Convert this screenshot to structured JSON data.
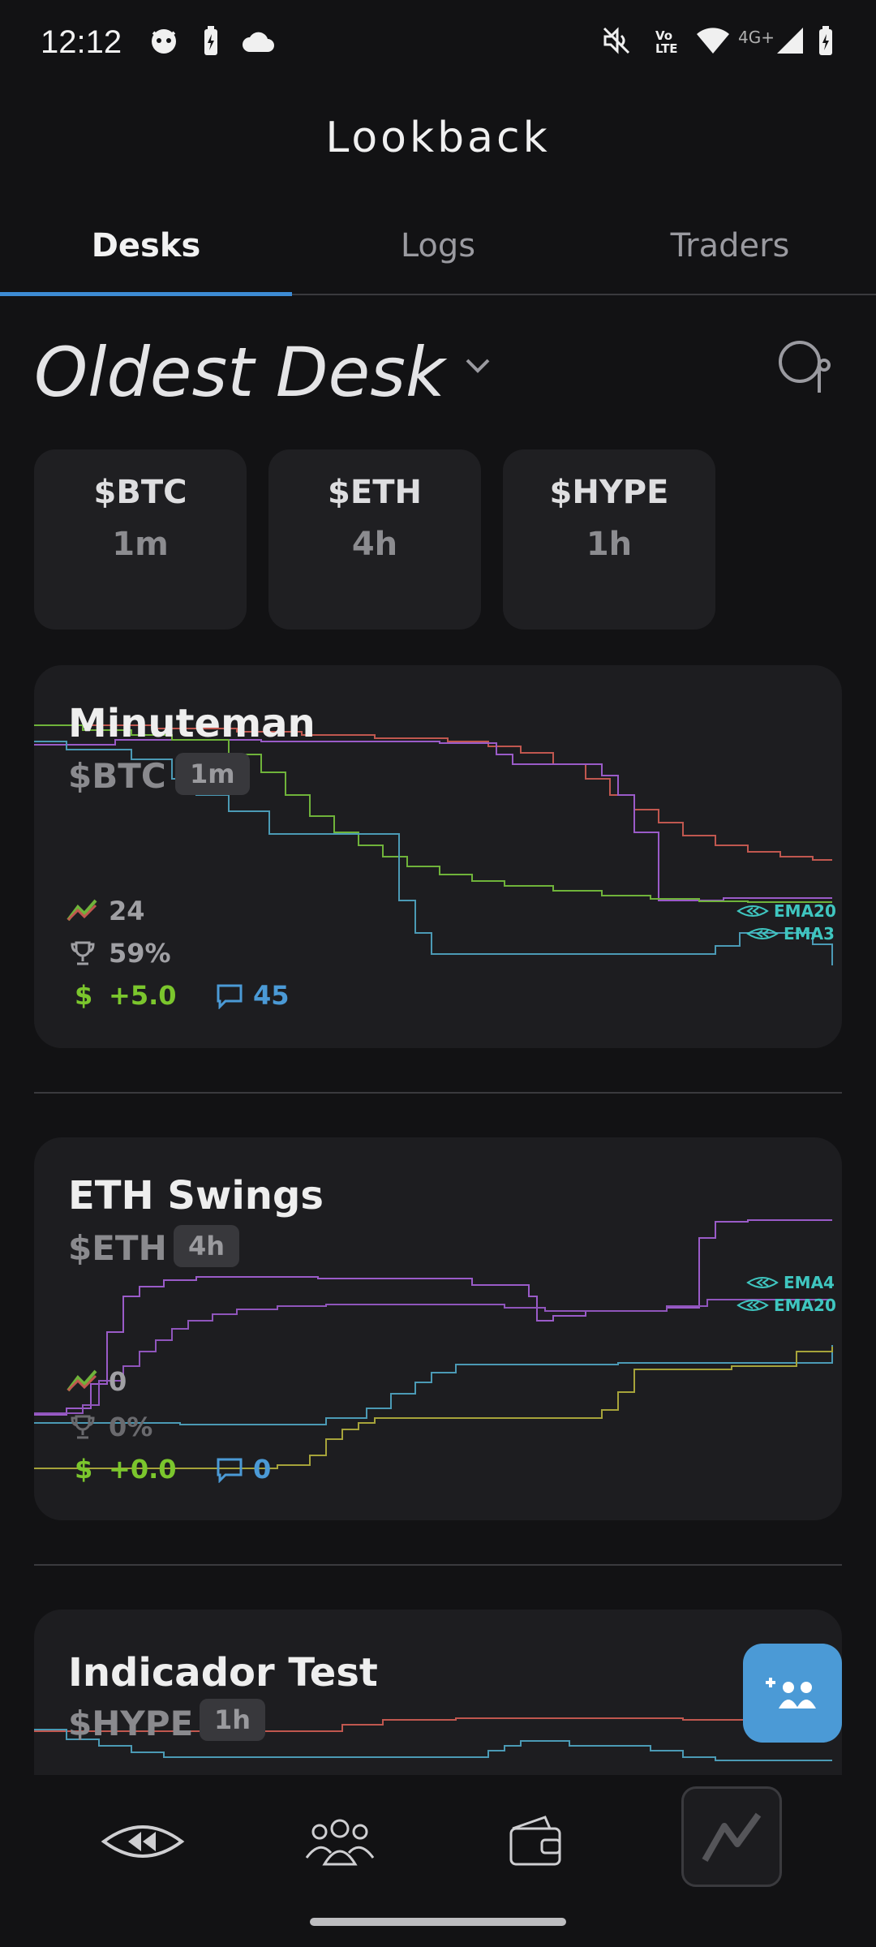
{
  "status_bar": {
    "time": "12:12",
    "left_icons": [
      "cat-face-icon",
      "battery-saver-icon",
      "cloud-icon"
    ],
    "right_icons": [
      "mute-icon",
      "volte-icon",
      "wifi-icon",
      "signal-icon",
      "battery-icon"
    ],
    "network_label": "4G+",
    "volte_label": "Vo LTE"
  },
  "app_bar": {
    "title": "Lookback"
  },
  "tabs": [
    {
      "label": "Desks",
      "active": true
    },
    {
      "label": "Logs",
      "active": false
    },
    {
      "label": "Traders",
      "active": false
    }
  ],
  "desk": {
    "title": "Oldest Desk",
    "dropdown_icon": "chevron-down-icon",
    "search_icon": "search-icon"
  },
  "tickers": [
    {
      "symbol": "$BTC",
      "timeframe": "1m"
    },
    {
      "symbol": "$ETH",
      "timeframe": "4h"
    },
    {
      "symbol": "$HYPE",
      "timeframe": "1h"
    }
  ],
  "cards": [
    {
      "name": "Minuteman",
      "symbol": "$BTC",
      "timeframe": "1m",
      "trades": "24",
      "win_rate": "59%",
      "pnl_prefix": "$",
      "pnl": "+5.0",
      "comments": "45",
      "ema_labels": [
        "EMA20",
        "EMA3"
      ]
    },
    {
      "name": "ETH Swings",
      "symbol": "$ETH",
      "timeframe": "4h",
      "trades": "0",
      "win_rate": "0%",
      "pnl_prefix": "$",
      "pnl": "+0.0",
      "comments": "0",
      "ema_labels": [
        "EMA4",
        "EMA20"
      ]
    },
    {
      "name": "Indicador Test",
      "symbol": "$HYPE",
      "timeframe": "1h"
    }
  ],
  "colors": {
    "accent": "#3d8bd4",
    "pnl_green": "#7bc62d",
    "comment_blue": "#4b9ad6",
    "ema_cyan": "#3fc6c0",
    "line_red": "#c0574f",
    "line_purple": "#9a5bc8",
    "line_green": "#6fb33a",
    "line_blue": "#4b9ab5",
    "line_yellow": "#a6a33a"
  },
  "fab": {
    "icon": "add-group-icon"
  },
  "bottom_nav": [
    {
      "icon": "rewind-eye-icon",
      "active": false
    },
    {
      "icon": "group-icon",
      "active": false
    },
    {
      "icon": "wallet-icon",
      "active": false
    },
    {
      "icon": "chart-line-icon",
      "active": true
    }
  ]
}
